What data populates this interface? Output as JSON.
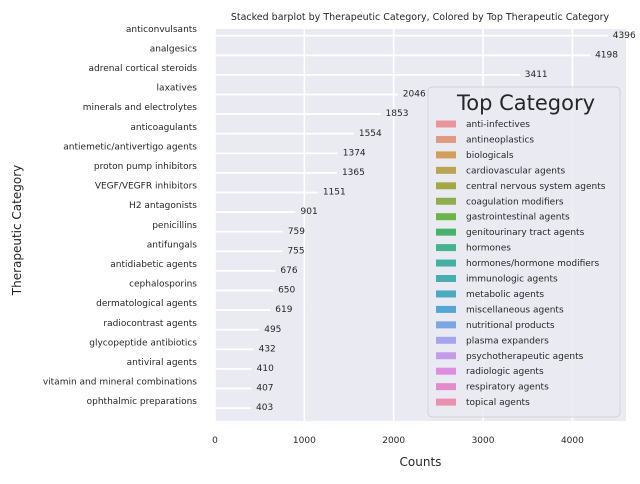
{
  "chart_data": {
    "type": "bar",
    "orientation": "horizontal",
    "title": "Stacked barplot by Therapeutic Category, Colored by Top Therapeutic Category",
    "xlabel": "Counts",
    "ylabel": "Therapeutic Category",
    "xlim": [
      0,
      4600
    ],
    "xticks": [
      0,
      1000,
      2000,
      3000,
      4000
    ],
    "grid": true,
    "legend_position": "right",
    "categories": [
      "anticonvulsants",
      "analgesics",
      "adrenal cortical steroids",
      "laxatives",
      "minerals and electrolytes",
      "anticoagulants",
      "antiemetic/antivertigo agents",
      "proton pump inhibitors",
      "VEGF/VEGFR  inhibitors",
      "H2 antagonists",
      "penicillins",
      "antifungals",
      "antidiabetic agents",
      "cephalosporins",
      "dermatological agents",
      "radiocontrast agents",
      "glycopeptide antibiotics",
      "antiviral agents",
      "vitamin and mineral combinations",
      "ophthalmic preparations"
    ],
    "values": [
      4396,
      4198,
      3411,
      2046,
      1853,
      1554,
      1374,
      1365,
      1151,
      901,
      759,
      755,
      676,
      650,
      619,
      495,
      432,
      410,
      407,
      403
    ],
    "legend": {
      "title": "Top Category",
      "entries": [
        {
          "label": "anti-infectives",
          "color": "#e8959c"
        },
        {
          "label": "antineoplastics",
          "color": "#e09a80"
        },
        {
          "label": "biologicals",
          "color": "#d29e5a"
        },
        {
          "label": "cardiovascular agents",
          "color": "#bca552"
        },
        {
          "label": "central nervous system agents",
          "color": "#a3a842"
        },
        {
          "label": "coagulation modifiers",
          "color": "#8fae4c"
        },
        {
          "label": "gastrointestinal agents",
          "color": "#6bb447"
        },
        {
          "label": "genitourinary tract agents",
          "color": "#47b26a"
        },
        {
          "label": "hormones",
          "color": "#44b38f"
        },
        {
          "label": "hormones/hormone modifiers",
          "color": "#43b1a1"
        },
        {
          "label": "immunologic agents",
          "color": "#45aeb0"
        },
        {
          "label": "metabolic agents",
          "color": "#4aaabe"
        },
        {
          "label": "miscellaneous agents",
          "color": "#55a6d4"
        },
        {
          "label": "nutritional products",
          "color": "#7aa6e4"
        },
        {
          "label": "plasma expanders",
          "color": "#a6a6ee"
        },
        {
          "label": "psychotherapeutic agents",
          "color": "#c39be8"
        },
        {
          "label": "radiologic agents",
          "color": "#dc8ee0"
        },
        {
          "label": "respiratory agents",
          "color": "#e48bca"
        },
        {
          "label": "topical agents",
          "color": "#e891b0"
        }
      ]
    }
  }
}
